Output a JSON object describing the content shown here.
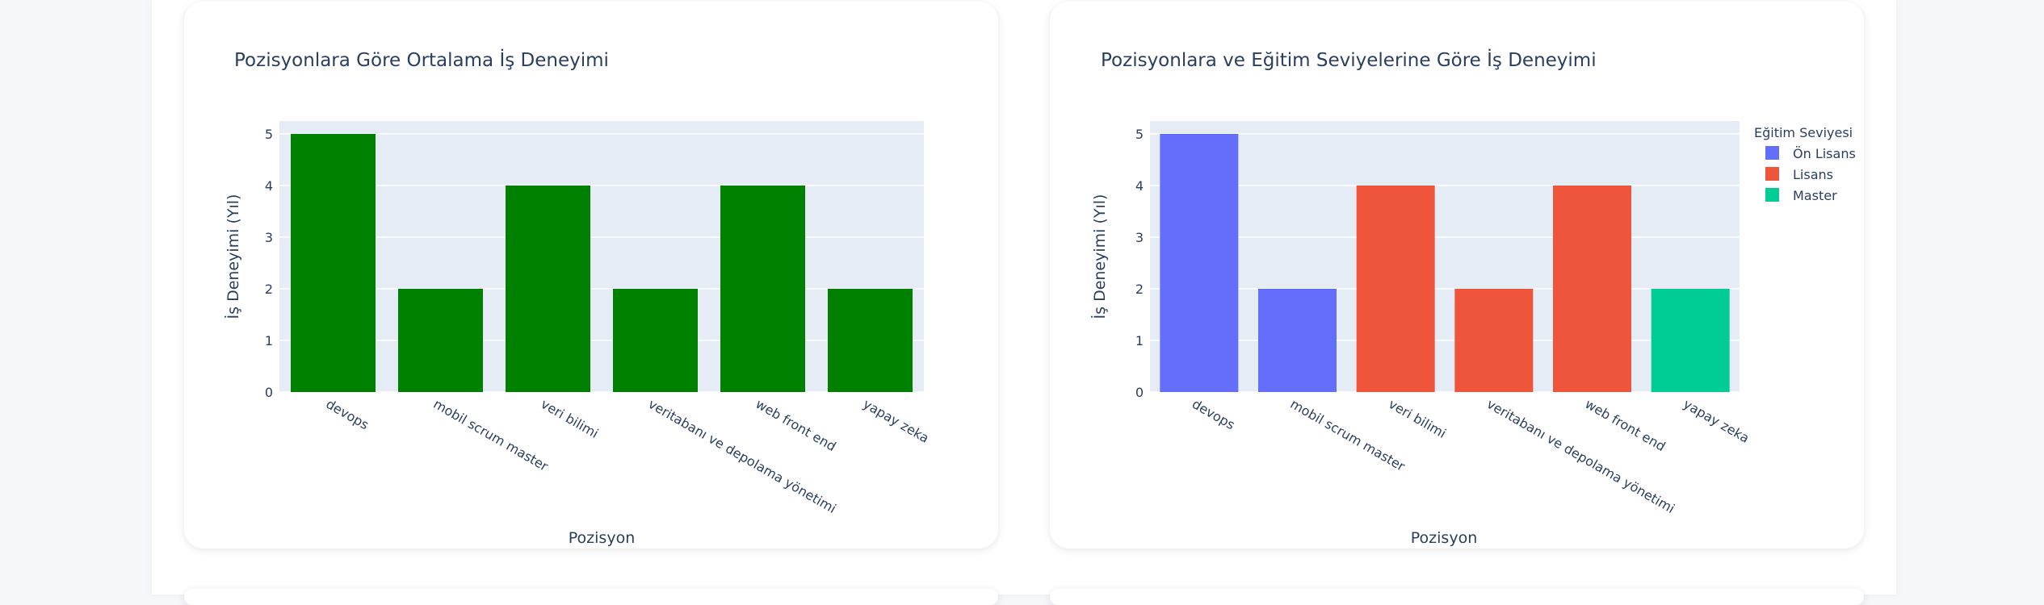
{
  "colors": {
    "plot_bg": "#e5ecf6",
    "grid": "#ffffff",
    "text": "#2a3f5f",
    "bar_single": "#008000"
  },
  "chart_data": [
    {
      "type": "bar",
      "title": "Pozisyonlara Göre Ortalama İş Deneyimi",
      "xlabel": "Pozisyon",
      "ylabel": "İş Deneyimi (Yıl)",
      "categories": [
        "devops",
        "mobil scrum master",
        "veri bilimi",
        "veritabanı ve depolama yönetimi",
        "web front end",
        "yapay zeka"
      ],
      "values": [
        5,
        2,
        4,
        2,
        4,
        2
      ],
      "ylim": [
        0,
        5.25
      ],
      "yticks": [
        0,
        1,
        2,
        3,
        4,
        5
      ],
      "grid": true,
      "color": "#008000"
    },
    {
      "type": "bar",
      "title": "Pozisyonlara ve Eğitim Seviyelerine Göre İş Deneyimi",
      "xlabel": "Pozisyon",
      "ylabel": "İş Deneyimi (Yıl)",
      "categories": [
        "devops",
        "mobil scrum master",
        "veri bilimi",
        "veritabanı ve depolama yönetimi",
        "web front end",
        "yapay zeka"
      ],
      "values": [
        5,
        2,
        4,
        2,
        4,
        2
      ],
      "groups": [
        "Ön Lisans",
        "Ön Lisans",
        "Lisans",
        "Lisans",
        "Lisans",
        "Master"
      ],
      "ylim": [
        0,
        5.25
      ],
      "yticks": [
        0,
        1,
        2,
        3,
        4,
        5
      ],
      "grid": true,
      "legend_title": "Eğitim Seviyesi",
      "legend_placement": "top-right",
      "series": [
        {
          "name": "Ön Lisans",
          "color": "#636efa"
        },
        {
          "name": "Lisans",
          "color": "#ef553b"
        },
        {
          "name": "Master",
          "color": "#00cc96"
        }
      ]
    }
  ]
}
